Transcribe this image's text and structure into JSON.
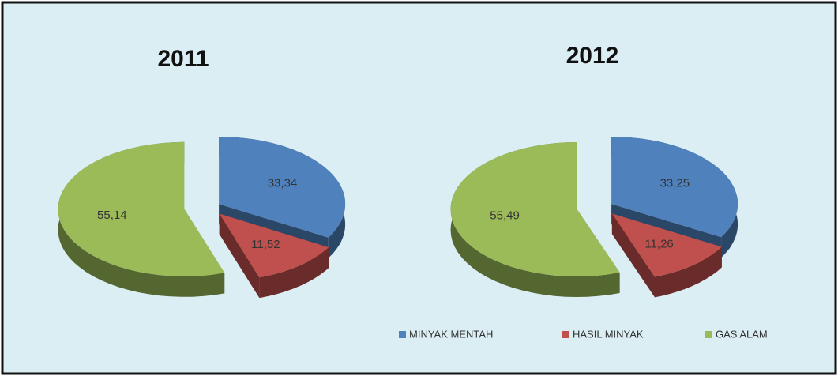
{
  "chart_data": [
    {
      "type": "pie",
      "title": "2011",
      "categories": [
        "MINYAK MENTAH",
        "HASIL MINYAK",
        "GAS ALAM"
      ],
      "values": [
        33.34,
        11.52,
        55.14
      ],
      "value_labels": [
        "33,34",
        "11,52",
        "55,14"
      ],
      "colors": [
        "#4f81bd",
        "#c0504d",
        "#9bbb59"
      ]
    },
    {
      "type": "pie",
      "title": "2012",
      "categories": [
        "MINYAK MENTAH",
        "HASIL MINYAK",
        "GAS ALAM"
      ],
      "values": [
        33.25,
        11.26,
        55.49
      ],
      "value_labels": [
        "33,25",
        "11,26",
        "55,49"
      ],
      "colors": [
        "#4f81bd",
        "#c0504d",
        "#9bbb59"
      ]
    }
  ]
}
